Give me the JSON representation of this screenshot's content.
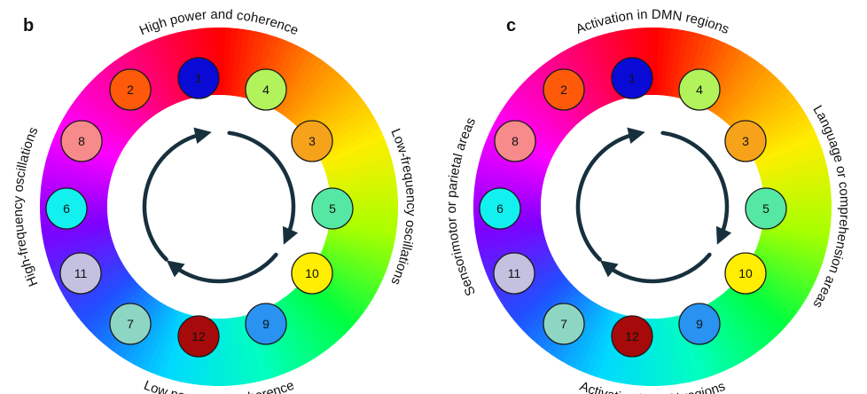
{
  "panels": [
    {
      "letter": "b",
      "labels": {
        "top": "High power and coherence",
        "right": "Low-frequency oscillations",
        "bottom": "Low power and coherence",
        "left": "High-frequency oscillations"
      },
      "nodes": [
        {
          "label": "1",
          "color": "#0a0ad6"
        },
        {
          "label": "2",
          "color": "#ff5a0a"
        },
        {
          "label": "4",
          "color": "#b2f25a"
        },
        {
          "label": "8",
          "color": "#f78a8a"
        },
        {
          "label": "3",
          "color": "#f7a21b"
        },
        {
          "label": "6",
          "color": "#12f0f0"
        },
        {
          "label": "5",
          "color": "#55e8a4"
        },
        {
          "label": "11",
          "color": "#c4c0e0"
        },
        {
          "label": "10",
          "color": "#ffee00"
        },
        {
          "label": "7",
          "color": "#8ed6c4"
        },
        {
          "label": "12",
          "color": "#a60a0a"
        },
        {
          "label": "9",
          "color": "#2a92f0"
        }
      ]
    },
    {
      "letter": "c",
      "labels": {
        "top": "Activation in DMN regions",
        "right": "Language or comprehension areas",
        "bottom": "Activation in DAN regions",
        "left": "Sensorimotor or parietal areas"
      },
      "nodes": [
        {
          "label": "1",
          "color": "#0a0ad6"
        },
        {
          "label": "2",
          "color": "#ff5a0a"
        },
        {
          "label": "4",
          "color": "#b2f25a"
        },
        {
          "label": "8",
          "color": "#f78a8a"
        },
        {
          "label": "3",
          "color": "#f7a21b"
        },
        {
          "label": "6",
          "color": "#12f0f0"
        },
        {
          "label": "5",
          "color": "#55e8a4"
        },
        {
          "label": "11",
          "color": "#c4c0e0"
        },
        {
          "label": "10",
          "color": "#ffee00"
        },
        {
          "label": "7",
          "color": "#8ed6c4"
        },
        {
          "label": "12",
          "color": "#a60a0a"
        },
        {
          "label": "9",
          "color": "#2a92f0"
        }
      ]
    }
  ],
  "arrow_color": "#17303d"
}
